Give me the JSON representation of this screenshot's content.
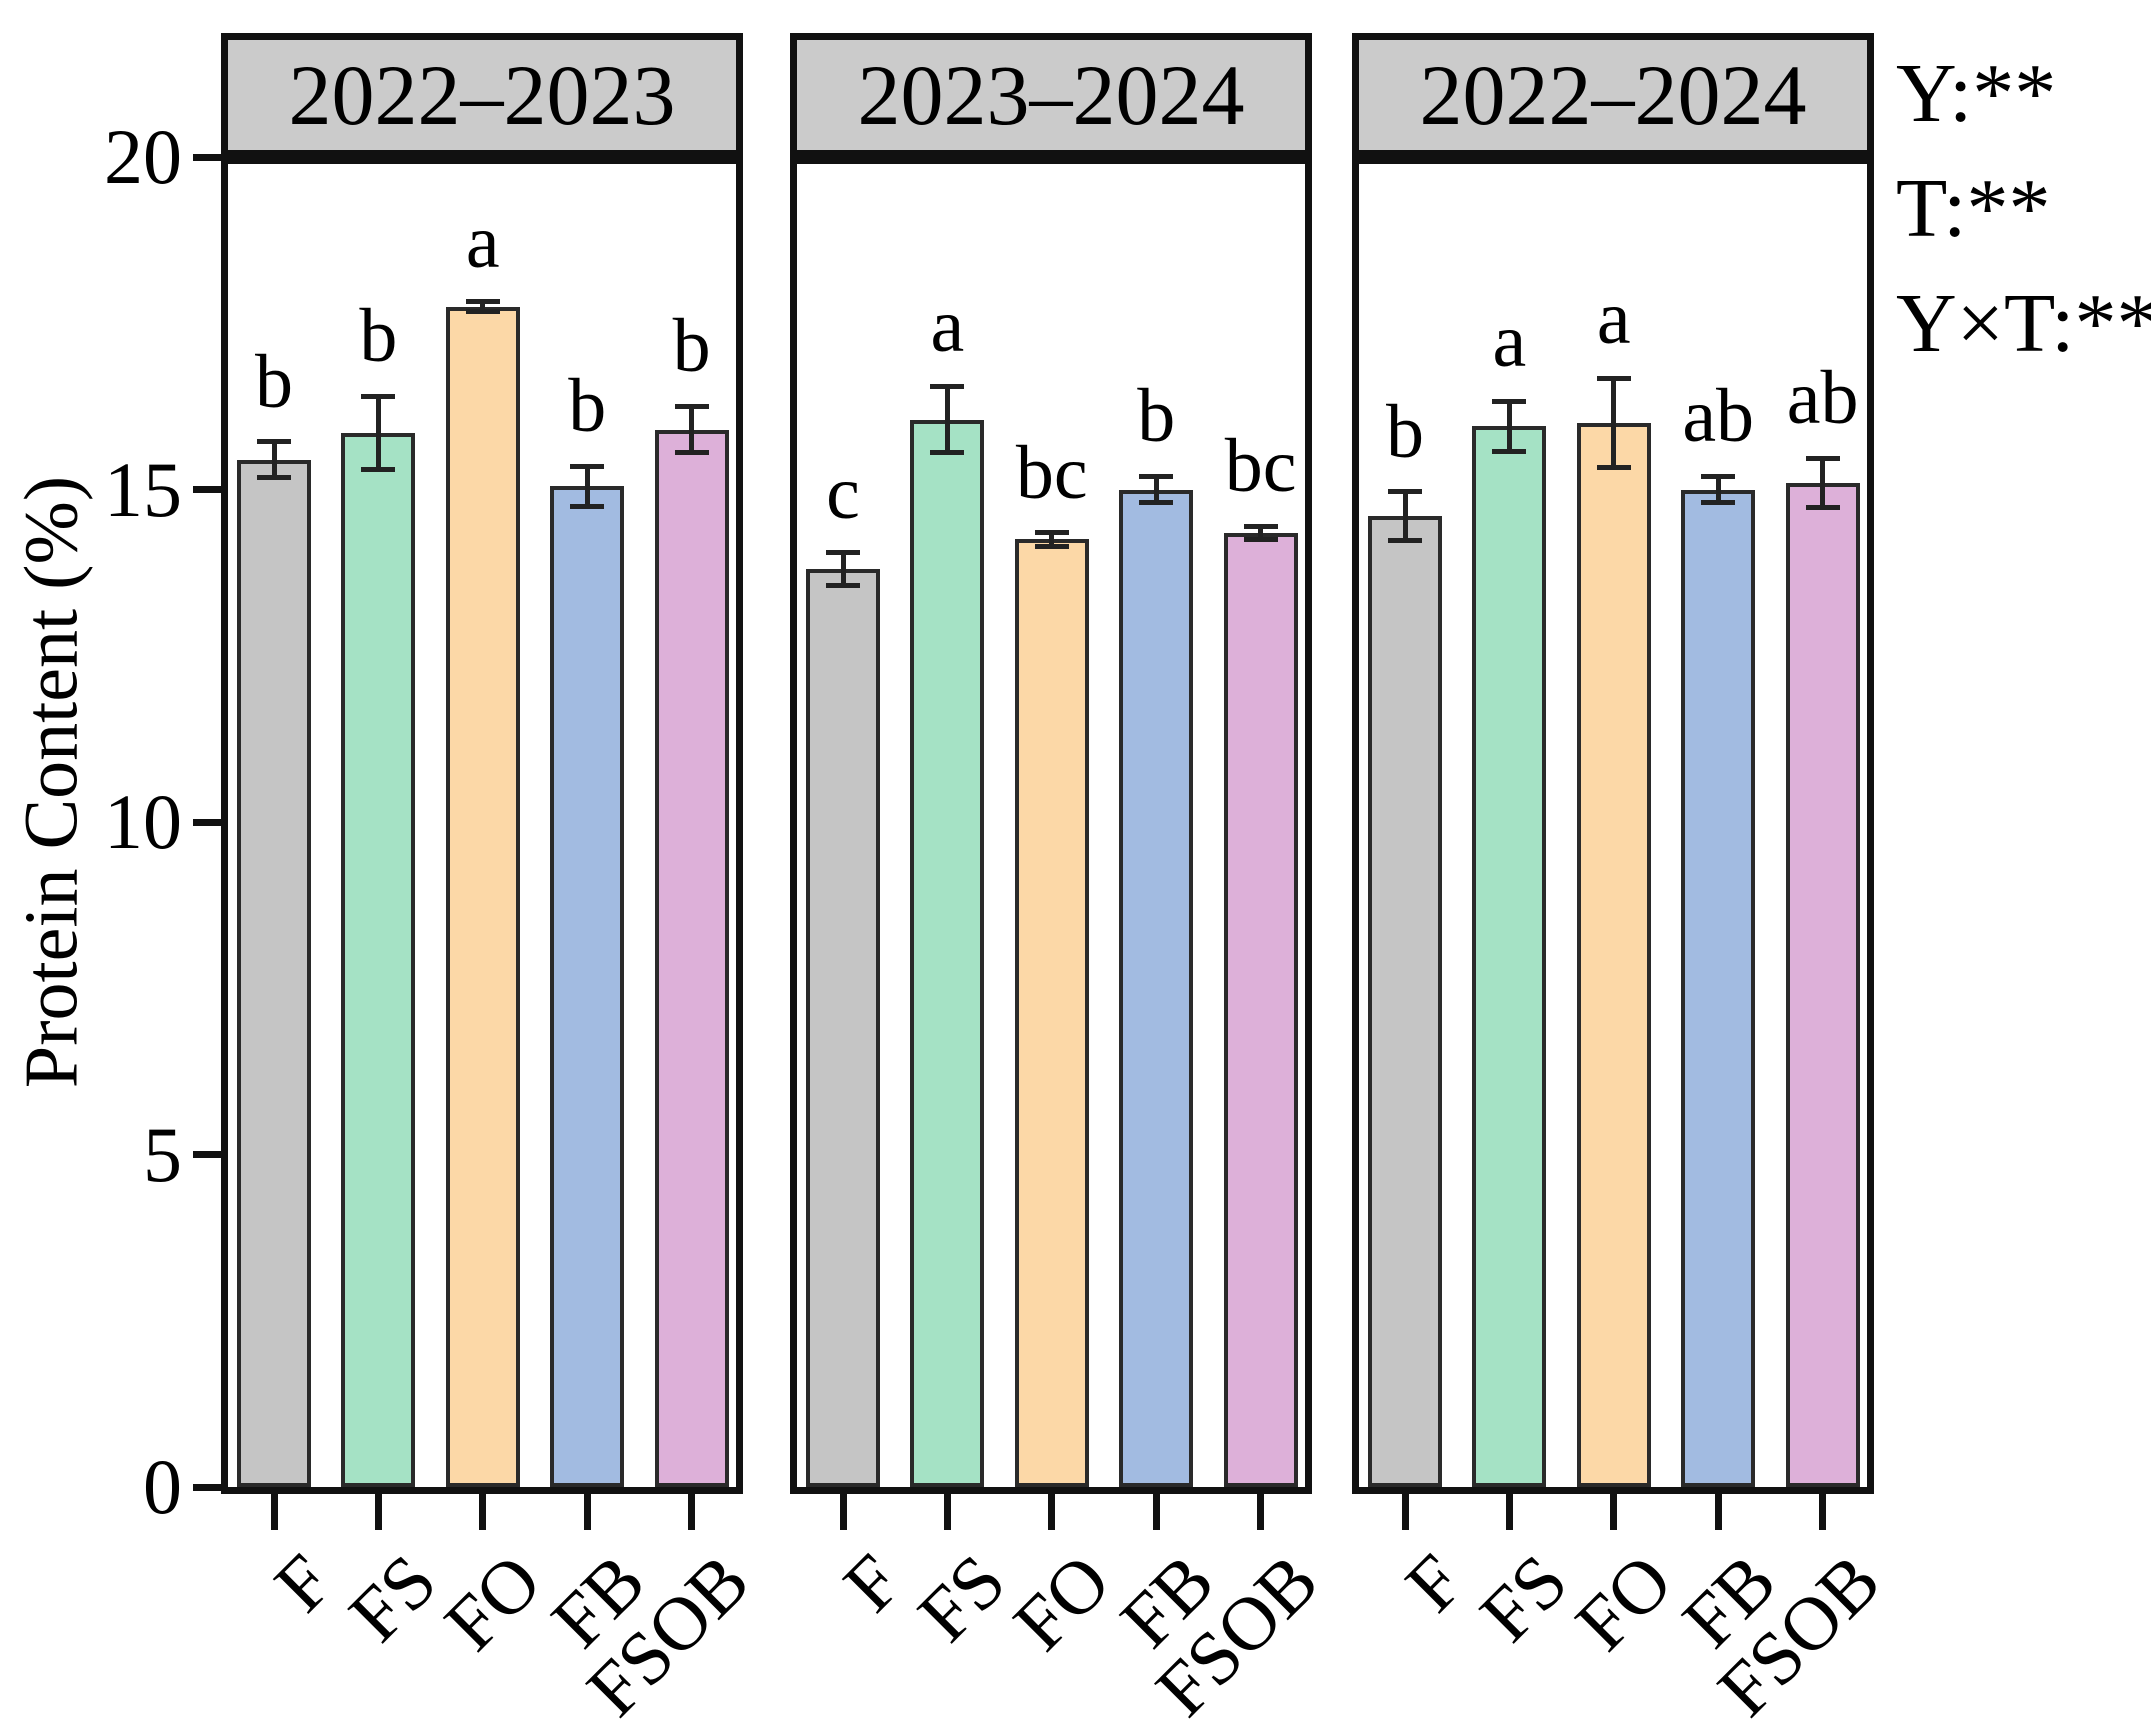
{
  "chart_data": {
    "type": "bar",
    "title": "",
    "ylabel": "Protein Content (%)",
    "xlabel": "",
    "ylim": [
      0,
      20
    ],
    "yticks": [
      0,
      5,
      10,
      15,
      20
    ],
    "grid": false,
    "legend_position": "none",
    "categories": [
      "F",
      "FS",
      "FO",
      "FB",
      "FSOB"
    ],
    "bar_colors": [
      "#c5c5c5",
      "#a5e2c5",
      "#fcd8a7",
      "#a2bbe1",
      "#ddb0d9"
    ],
    "strip_fill": "#cbcbcb",
    "panels": [
      {
        "title": "2022–2023",
        "values": [
          15.45,
          15.85,
          17.75,
          15.05,
          15.9
        ],
        "errors": [
          0.27,
          0.55,
          0.07,
          0.3,
          0.35
        ],
        "letters": [
          "b",
          "b",
          "a",
          "b",
          "b"
        ]
      },
      {
        "title": "2023–2024",
        "values": [
          13.8,
          16.05,
          14.25,
          15.0,
          14.35
        ],
        "errors": [
          0.25,
          0.5,
          0.1,
          0.2,
          0.1
        ],
        "letters": [
          "c",
          "a",
          "bc",
          "b",
          "bc"
        ]
      },
      {
        "title": "2022–2024",
        "values": [
          14.6,
          15.95,
          16.0,
          15.0,
          15.1
        ],
        "errors": [
          0.37,
          0.38,
          0.67,
          0.2,
          0.37
        ],
        "letters": [
          "b",
          "a",
          "a",
          "ab",
          "ab"
        ]
      }
    ],
    "annotations": [
      "Y:**",
      "T:**",
      "Y×T:**"
    ]
  }
}
